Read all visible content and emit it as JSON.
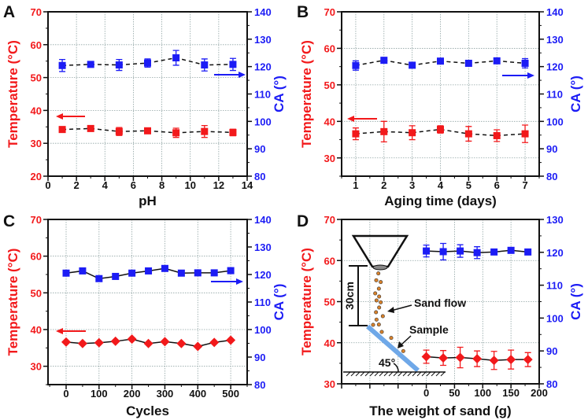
{
  "colors": {
    "temperature": "#f2191b",
    "ca": "#1c1cf5",
    "line": "#111111",
    "grid": "#8fa3a3",
    "sample": "#6fa8e8"
  },
  "chart_data": [
    {
      "type": "line",
      "panel": "A",
      "xlabel": "pH",
      "ylabel_left": "Temperature (°C)",
      "ylabel_right": "CA (°)",
      "xlim": [
        0,
        14
      ],
      "ylim_left": [
        20,
        70
      ],
      "ylim_right": [
        80,
        140
      ],
      "x_ticks": [
        0,
        2,
        4,
        6,
        8,
        10,
        12,
        14
      ],
      "y_ticks_left": [
        20,
        30,
        40,
        50,
        60,
        70
      ],
      "y_ticks_right": [
        80,
        90,
        100,
        110,
        120,
        130,
        140
      ],
      "grid": true,
      "line_style": "dashed",
      "x": [
        1,
        3,
        5,
        7,
        9,
        11,
        13
      ],
      "series": [
        {
          "name": "Temperature",
          "axis": "left",
          "marker": "square",
          "values": [
            34.2,
            34.5,
            33.6,
            33.8,
            33.2,
            33.6,
            33.3
          ],
          "errors": [
            0.5,
            0.4,
            1.2,
            0.4,
            1.4,
            1.8,
            1.0
          ]
        },
        {
          "name": "CA",
          "axis": "right",
          "marker": "square",
          "values": [
            120.4,
            120.8,
            120.6,
            121.3,
            123.2,
            120.6,
            120.8
          ],
          "errors": [
            2.2,
            0.8,
            2.0,
            1.5,
            2.7,
            2.2,
            2.2
          ]
        }
      ]
    },
    {
      "type": "line",
      "panel": "B",
      "xlabel": "Aging time (days)",
      "ylabel_left": "Temperature (°C)",
      "ylabel_right": "CA (°)",
      "xlim": [
        0.5,
        7.5
      ],
      "ylim_left": [
        25,
        70
      ],
      "ylim_right": [
        80,
        140
      ],
      "x_ticks": [
        1,
        2,
        3,
        4,
        5,
        6,
        7
      ],
      "y_ticks_left": [
        30,
        40,
        50,
        60,
        70
      ],
      "y_ticks_right": [
        80,
        90,
        100,
        110,
        120,
        130,
        140
      ],
      "grid": true,
      "line_style": "dashed",
      "x": [
        1,
        2,
        3,
        4,
        5,
        6,
        7
      ],
      "series": [
        {
          "name": "Temperature",
          "axis": "left",
          "marker": "square",
          "values": [
            36.6,
            37.2,
            36.9,
            37.8,
            36.6,
            36.1,
            36.6
          ],
          "errors": [
            1.6,
            2.8,
            1.9,
            1.0,
            2.0,
            1.6,
            2.4
          ]
        },
        {
          "name": "CA",
          "axis": "right",
          "marker": "square",
          "values": [
            120.4,
            122.3,
            120.5,
            122.0,
            121.2,
            122.1,
            121.2
          ],
          "errors": [
            1.7,
            0.6,
            0.4,
            0.4,
            1.0,
            0.4,
            1.7
          ]
        }
      ]
    },
    {
      "type": "line",
      "panel": "C",
      "xlabel": "Cycles",
      "ylabel_left": "Temperature (°C)",
      "ylabel_right": "CA (°)",
      "xlim": [
        -55,
        550
      ],
      "ylim_left": [
        25,
        70
      ],
      "ylim_right": [
        80,
        140
      ],
      "x_ticks": [
        0,
        100,
        200,
        300,
        400,
        500
      ],
      "y_ticks_left": [
        30,
        40,
        50,
        60,
        70
      ],
      "y_ticks_right": [
        80,
        90,
        100,
        110,
        120,
        130,
        140
      ],
      "grid": true,
      "line_style": "solid",
      "x": [
        0,
        50,
        100,
        150,
        200,
        250,
        300,
        350,
        400,
        450,
        500
      ],
      "series": [
        {
          "name": "Temperature",
          "axis": "left",
          "marker": "diamond",
          "values": [
            36.6,
            36.2,
            36.4,
            36.8,
            37.4,
            36.2,
            36.7,
            36.2,
            35.4,
            36.5,
            37.1
          ]
        },
        {
          "name": "CA",
          "axis": "right",
          "marker": "square",
          "values": [
            120.5,
            121.3,
            118.5,
            119.3,
            120.5,
            121.3,
            122.2,
            120.5,
            120.6,
            120.6,
            121.4
          ]
        }
      ]
    },
    {
      "type": "line",
      "panel": "D",
      "xlabel": "The weight of sand (g)",
      "ylabel_left": "Temperature (°C)",
      "ylabel_right": "CA (°)",
      "xlim": [
        -150,
        200
      ],
      "ylim_left": [
        30,
        70
      ],
      "ylim_right": [
        80,
        130
      ],
      "x_ticks": [
        0,
        50,
        100,
        150,
        200
      ],
      "y_ticks_left": [
        30,
        40,
        50,
        60,
        70
      ],
      "y_ticks_right": [
        80,
        90,
        100,
        110,
        120,
        130
      ],
      "grid": true,
      "line_style": "solid",
      "x": [
        0,
        30,
        60,
        90,
        120,
        150,
        180
      ],
      "series": [
        {
          "name": "Temperature",
          "axis": "left",
          "marker": "diamond",
          "values": [
            36.6,
            36.3,
            36.4,
            36.1,
            35.7,
            35.9,
            35.9
          ],
          "errors": [
            1.6,
            1.8,
            2.5,
            1.9,
            2.2,
            2.3,
            1.7
          ]
        },
        {
          "name": "CA",
          "axis": "right",
          "marker": "square",
          "values": [
            120.4,
            120.2,
            120.4,
            119.9,
            120.1,
            120.6,
            120.1
          ],
          "errors": [
            1.8,
            2.5,
            1.9,
            1.8,
            0.8,
            0.8,
            0.3
          ]
        }
      ],
      "annotations": {
        "height_label": "30cm",
        "sand_label": "Sand flow",
        "sample_label": "Sample",
        "angle_label": "45°"
      }
    }
  ]
}
